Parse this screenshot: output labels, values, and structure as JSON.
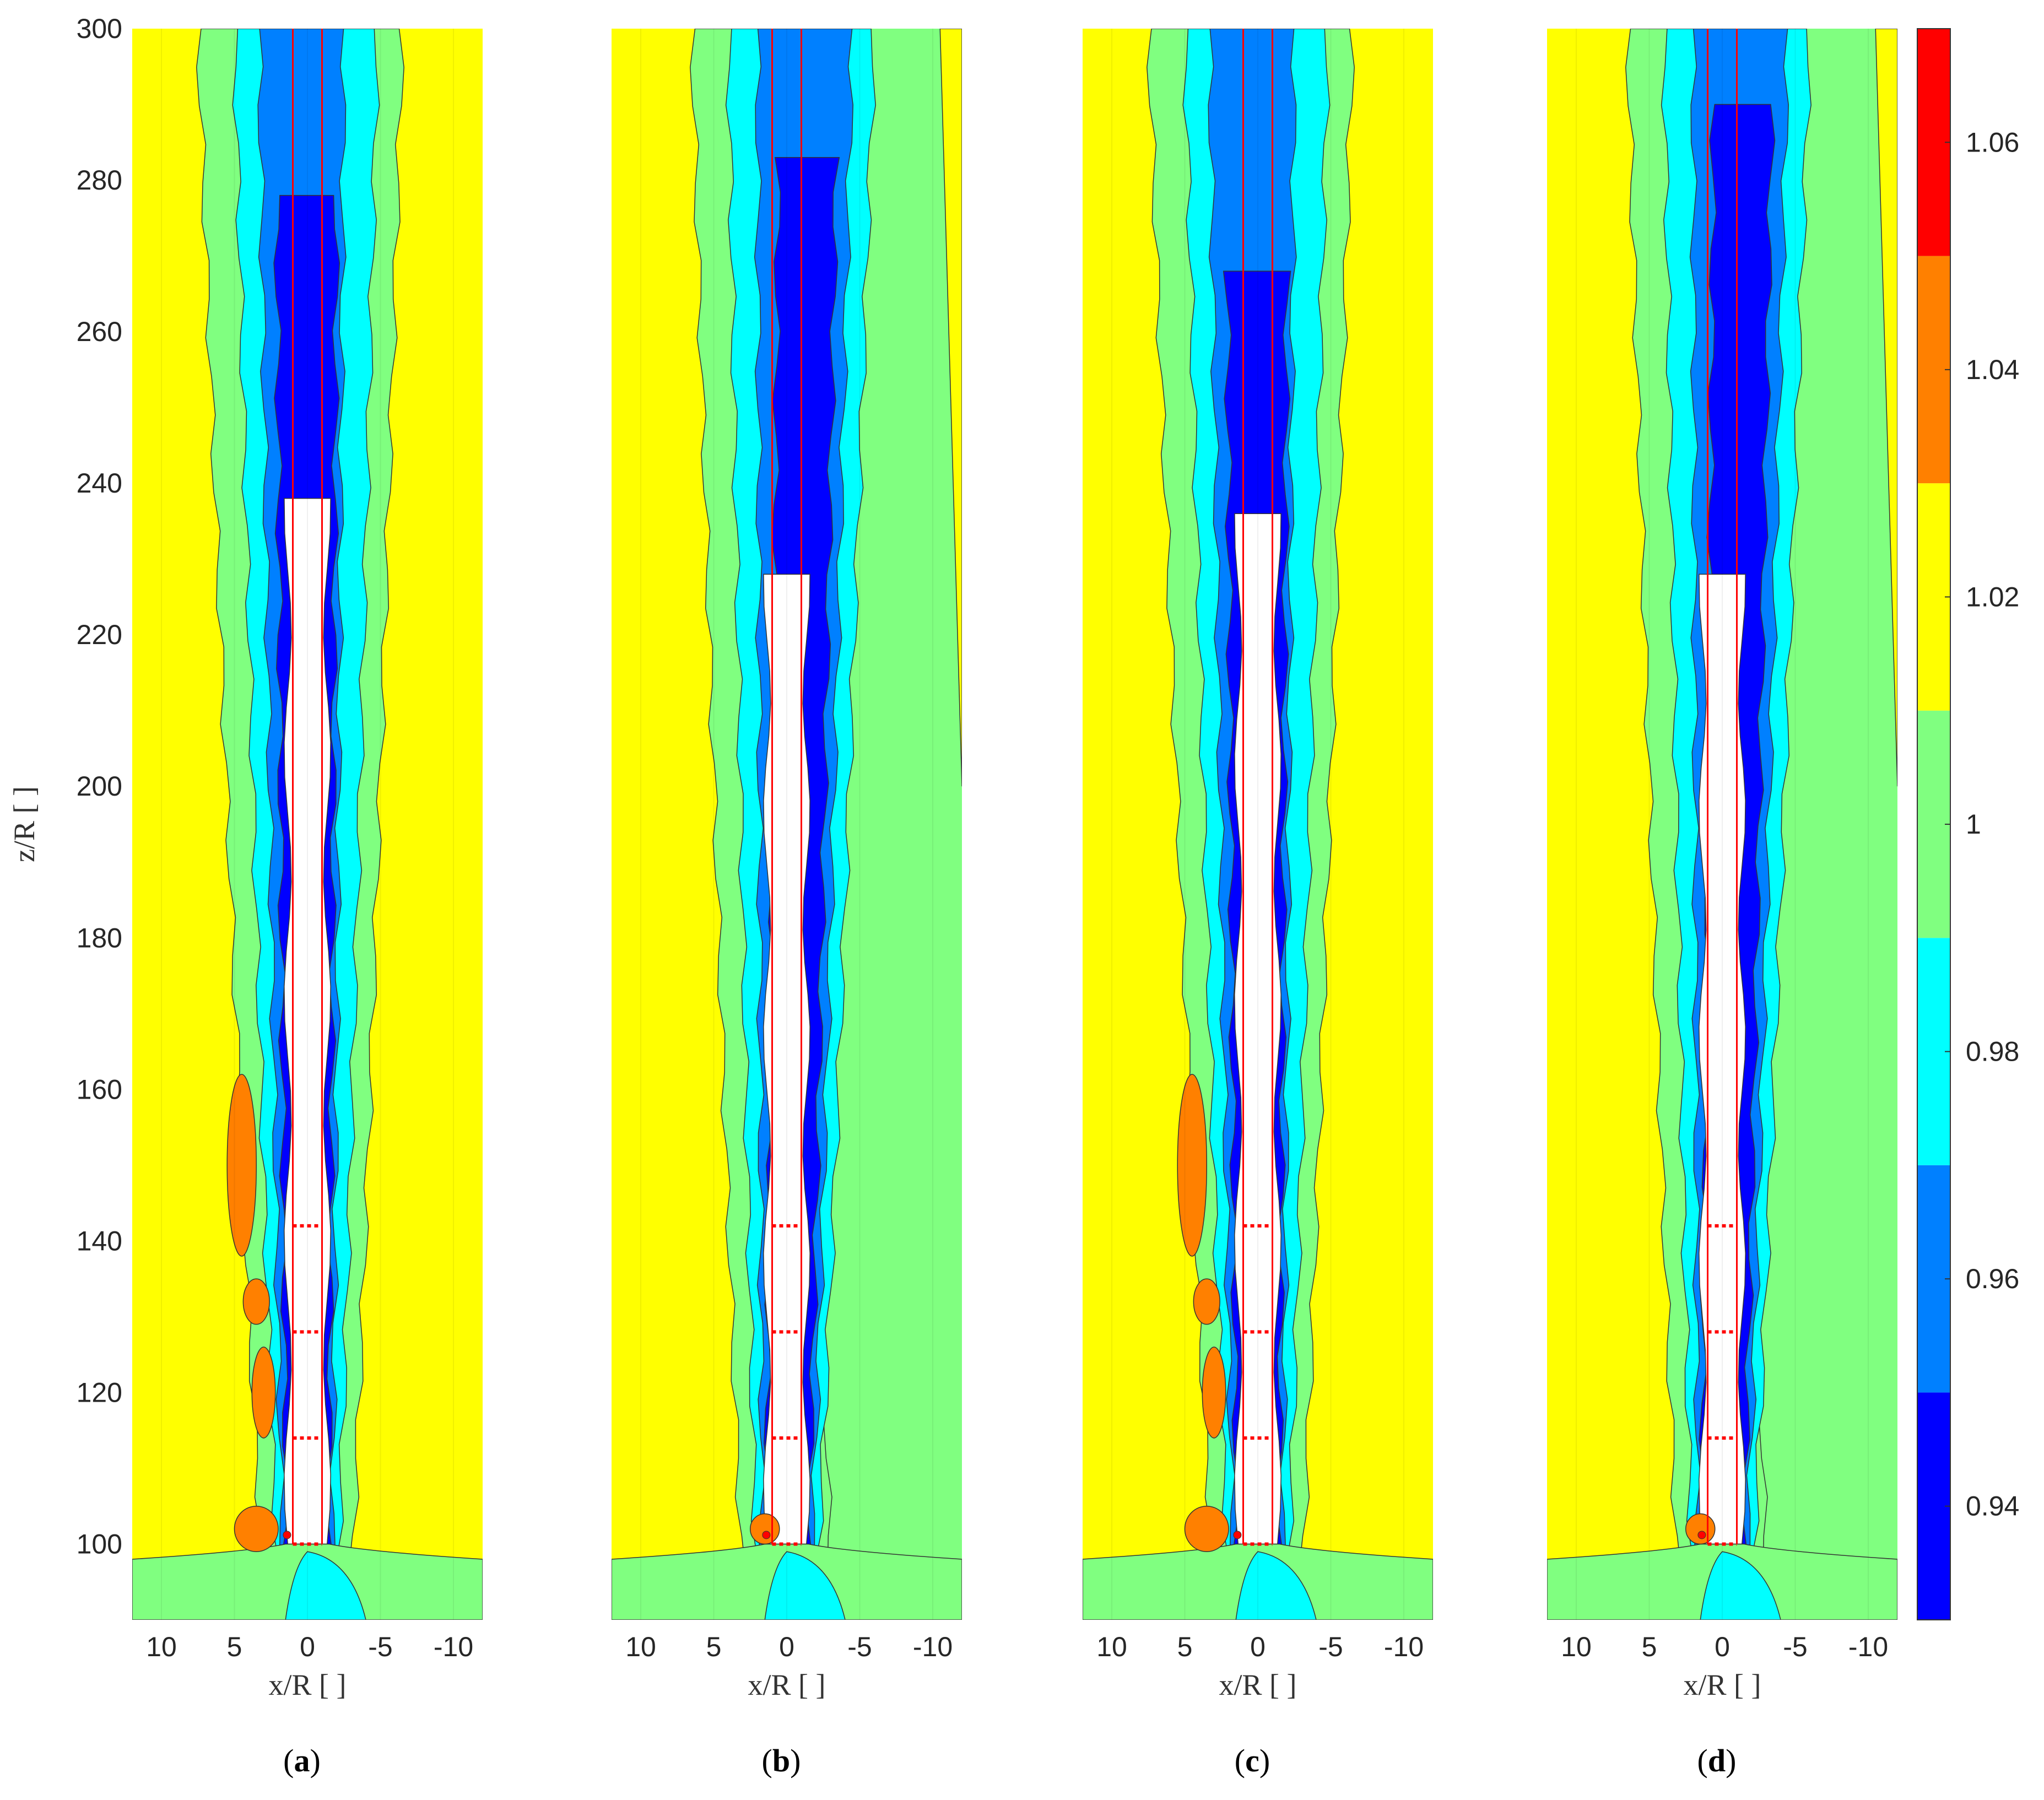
{
  "chart_data": [
    {
      "type": "heatmap",
      "panel": "(a)",
      "caption_letter": "a",
      "xlabel": "x/R [ ]",
      "ylabel": "z/R [ ]",
      "x_ticks": [
        "10",
        "5",
        "0",
        "-5",
        "-10"
      ],
      "y_ticks": [
        "300",
        "280",
        "260",
        "240",
        "220",
        "200",
        "180",
        "160",
        "140",
        "120",
        "100"
      ],
      "xlim": [
        12,
        -12
      ],
      "ylim": [
        90,
        300
      ],
      "field": {
        "levels_cutoff_note": "",
        "white_core_top": 238,
        "deep_blue_top": 278,
        "blue_top": 300,
        "orange_patches": [
          [
            4.5,
            150,
            1.0,
            12
          ],
          [
            3.5,
            132,
            0.9,
            3
          ],
          [
            3,
            120,
            0.8,
            6
          ],
          [
            3.5,
            102,
            1.5,
            3
          ]
        ],
        "right_yellow_start": -3.5
      }
    },
    {
      "type": "heatmap",
      "panel": "(b)",
      "caption_letter": "b",
      "xlabel": "x/R [ ]",
      "ylabel": "",
      "x_ticks": [
        "10",
        "5",
        "0",
        "-5",
        "-10"
      ],
      "y_ticks": [],
      "xlim": [
        12,
        -12
      ],
      "ylim": [
        90,
        300
      ],
      "field": {
        "white_core_top": 228,
        "deep_blue_top": 283,
        "blue_top": 300,
        "orange_patches": [
          [
            1.5,
            102,
            1.0,
            2
          ]
        ],
        "right_yellow_start": -9
      }
    },
    {
      "type": "heatmap",
      "panel": "(c)",
      "caption_letter": "c",
      "xlabel": "x/R [ ]",
      "ylabel": "",
      "x_ticks": [
        "10",
        "5",
        "0",
        "-5",
        "-10"
      ],
      "y_ticks": [],
      "xlim": [
        12,
        -12
      ],
      "ylim": [
        90,
        300
      ],
      "field": {
        "white_core_top": 236,
        "deep_blue_top": 268,
        "blue_top": 300,
        "orange_patches": [
          [
            4.5,
            150,
            1.0,
            12
          ],
          [
            3.5,
            132,
            0.9,
            3
          ],
          [
            3,
            120,
            0.8,
            6
          ],
          [
            3.5,
            102,
            1.5,
            3
          ]
        ],
        "right_yellow_start": -3.5
      }
    },
    {
      "type": "heatmap",
      "panel": "(d)",
      "caption_letter": "d",
      "xlabel": "x/R [ ]",
      "ylabel": "",
      "x_ticks": [
        "10",
        "5",
        "0",
        "-5",
        "-10"
      ],
      "y_ticks": [],
      "xlim": [
        12,
        -12
      ],
      "ylim": [
        90,
        300
      ],
      "field": {
        "white_core_top": 228,
        "deep_blue_top": 290,
        "blue_top": 300,
        "orange_patches": [
          [
            1.5,
            102,
            1.0,
            2
          ]
        ],
        "right_yellow_start": -9
      }
    }
  ],
  "colorbar": {
    "ticks": [
      "1.06",
      "1.04",
      "1.02",
      "1",
      "0.98",
      "0.96",
      "0.94"
    ],
    "range": [
      0.93,
      1.07
    ],
    "levels": [
      0.93,
      0.95,
      0.97,
      0.99,
      1.01,
      1.03,
      1.05,
      1.07
    ],
    "colors": [
      "#0000ff",
      "#0080ff",
      "#00ffff",
      "#80ff80",
      "#ffff00",
      "#ff8000",
      "#ff0000"
    ]
  },
  "turbine_markers": {
    "rotor_edges_x": [
      1,
      -1
    ],
    "dotted_z": [
      100,
      114,
      128,
      142
    ],
    "color": "#ff0000"
  }
}
